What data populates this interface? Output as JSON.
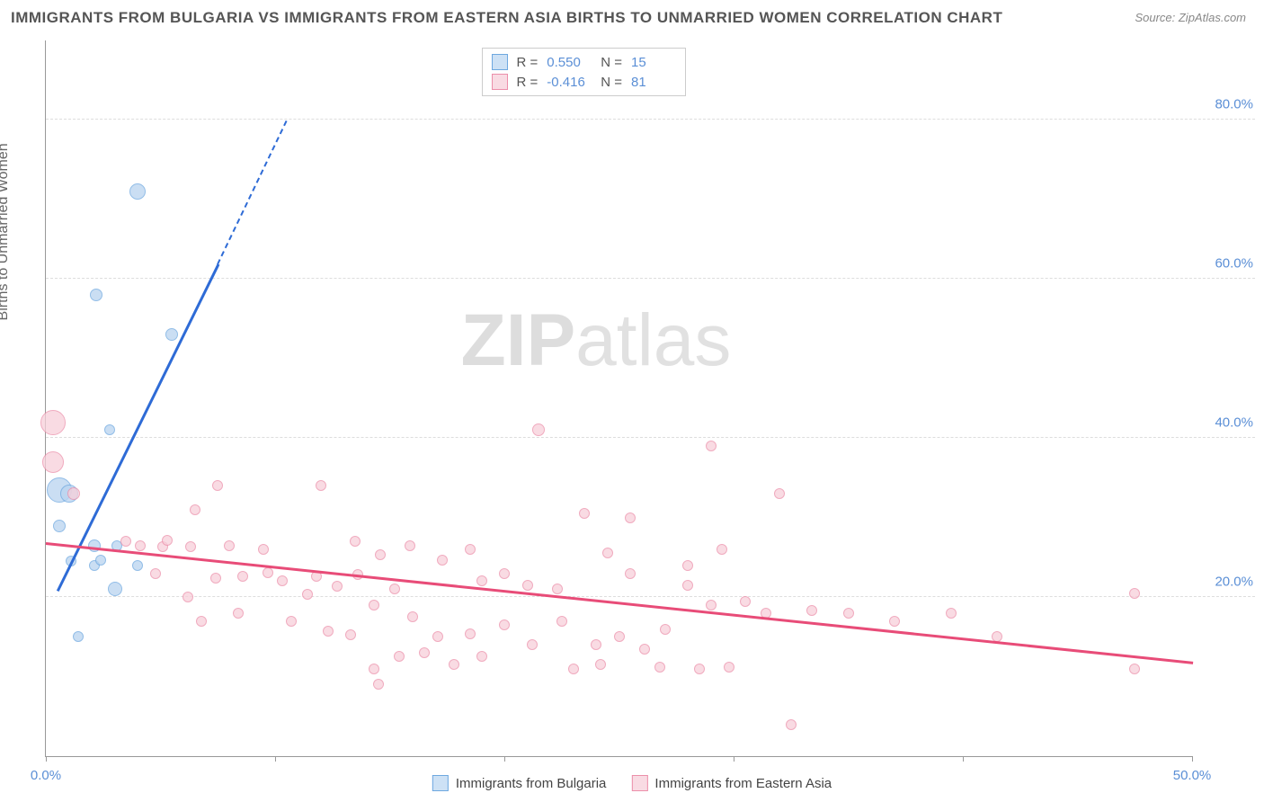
{
  "title": "IMMIGRANTS FROM BULGARIA VS IMMIGRANTS FROM EASTERN ASIA BIRTHS TO UNMARRIED WOMEN CORRELATION CHART",
  "source": "Source: ZipAtlas.com",
  "y_axis_label": "Births to Unmarried Women",
  "watermark_part1": "ZIP",
  "watermark_part2": "atlas",
  "chart": {
    "type": "scatter",
    "xlim": [
      0,
      50
    ],
    "ylim": [
      0,
      90
    ],
    "x_ticks": [
      0,
      10,
      20,
      30,
      40,
      50
    ],
    "x_tick_labels": {
      "0": "0.0%",
      "50": "50.0%"
    },
    "y_ticks": [
      20,
      40,
      60,
      80
    ],
    "y_tick_labels": {
      "20": "20.0%",
      "40": "40.0%",
      "60": "60.0%",
      "80": "80.0%"
    },
    "grid_color": "#dddddd",
    "background_color": "#ffffff"
  },
  "series": [
    {
      "name": "Immigrants from Bulgaria",
      "color_fill": "#b9d4f0",
      "color_stroke": "#6ea8e0",
      "swatch_fill": "#cde1f5",
      "swatch_border": "#6ea8e0",
      "trend_color": "#2e6bd6",
      "r_label": "R =",
      "r_value": "0.550",
      "n_label": "N =",
      "n_value": "15",
      "trend": {
        "x1": 0.5,
        "y1": 21,
        "x2": 7.5,
        "y2": 62,
        "dashed_x2": 10.5,
        "dashed_y2": 80
      },
      "points": [
        {
          "x": 0.6,
          "y": 33.5,
          "r": 14
        },
        {
          "x": 1.0,
          "y": 33,
          "r": 10
        },
        {
          "x": 4.0,
          "y": 71,
          "r": 9
        },
        {
          "x": 2.2,
          "y": 58,
          "r": 7
        },
        {
          "x": 5.5,
          "y": 53,
          "r": 7
        },
        {
          "x": 2.8,
          "y": 41,
          "r": 6
        },
        {
          "x": 0.6,
          "y": 29,
          "r": 7
        },
        {
          "x": 2.1,
          "y": 26.5,
          "r": 7
        },
        {
          "x": 3.1,
          "y": 26.5,
          "r": 6
        },
        {
          "x": 1.1,
          "y": 24.5,
          "r": 6
        },
        {
          "x": 2.1,
          "y": 24,
          "r": 6
        },
        {
          "x": 4.0,
          "y": 24,
          "r": 6
        },
        {
          "x": 3.0,
          "y": 21,
          "r": 8
        },
        {
          "x": 1.4,
          "y": 15,
          "r": 6
        },
        {
          "x": 2.4,
          "y": 24.7,
          "r": 6
        }
      ]
    },
    {
      "name": "Immigrants from Eastern Asia",
      "color_fill": "#f7d0da",
      "color_stroke": "#ec8faa",
      "swatch_fill": "#f9dbe3",
      "swatch_border": "#ec8faa",
      "trend_color": "#e84c78",
      "r_label": "R =",
      "r_value": "-0.416",
      "n_label": "N =",
      "n_value": "81",
      "trend": {
        "x1": 0,
        "y1": 27,
        "x2": 50,
        "y2": 12
      },
      "points": [
        {
          "x": 0.3,
          "y": 42,
          "r": 14
        },
        {
          "x": 0.3,
          "y": 37,
          "r": 12
        },
        {
          "x": 1.2,
          "y": 33,
          "r": 7
        },
        {
          "x": 21.5,
          "y": 41,
          "r": 7
        },
        {
          "x": 29,
          "y": 39,
          "r": 6
        },
        {
          "x": 7.5,
          "y": 34,
          "r": 6
        },
        {
          "x": 12,
          "y": 34,
          "r": 6
        },
        {
          "x": 32,
          "y": 33,
          "r": 6
        },
        {
          "x": 6.5,
          "y": 31,
          "r": 6
        },
        {
          "x": 23.5,
          "y": 30.5,
          "r": 6
        },
        {
          "x": 25.5,
          "y": 30,
          "r": 6
        },
        {
          "x": 3.5,
          "y": 27,
          "r": 6
        },
        {
          "x": 4.1,
          "y": 26.5,
          "r": 6
        },
        {
          "x": 5.1,
          "y": 26.3,
          "r": 6
        },
        {
          "x": 5.3,
          "y": 27.1,
          "r": 6
        },
        {
          "x": 6.3,
          "y": 26.3,
          "r": 6
        },
        {
          "x": 8.0,
          "y": 26.5,
          "r": 6
        },
        {
          "x": 9.5,
          "y": 26,
          "r": 6
        },
        {
          "x": 13.5,
          "y": 27,
          "r": 6
        },
        {
          "x": 14.6,
          "y": 25.3,
          "r": 6
        },
        {
          "x": 15.9,
          "y": 26.5,
          "r": 6
        },
        {
          "x": 17.3,
          "y": 24.7,
          "r": 6
        },
        {
          "x": 18.5,
          "y": 26,
          "r": 6
        },
        {
          "x": 24.5,
          "y": 25.5,
          "r": 6
        },
        {
          "x": 25.5,
          "y": 23,
          "r": 6
        },
        {
          "x": 28,
          "y": 24,
          "r": 6
        },
        {
          "x": 29.5,
          "y": 26,
          "r": 6
        },
        {
          "x": 4.8,
          "y": 23,
          "r": 6
        },
        {
          "x": 7.4,
          "y": 22.4,
          "r": 6
        },
        {
          "x": 8.6,
          "y": 22.6,
          "r": 6
        },
        {
          "x": 9.7,
          "y": 23.1,
          "r": 6
        },
        {
          "x": 10.3,
          "y": 22.1,
          "r": 6
        },
        {
          "x": 11.8,
          "y": 22.6,
          "r": 6
        },
        {
          "x": 12.7,
          "y": 21.4,
          "r": 6
        },
        {
          "x": 13.6,
          "y": 22.8,
          "r": 6
        },
        {
          "x": 19,
          "y": 22,
          "r": 6
        },
        {
          "x": 20,
          "y": 23,
          "r": 6
        },
        {
          "x": 21,
          "y": 21.5,
          "r": 6
        },
        {
          "x": 22.3,
          "y": 21,
          "r": 6
        },
        {
          "x": 6.2,
          "y": 20,
          "r": 6
        },
        {
          "x": 11.4,
          "y": 20.3,
          "r": 6
        },
        {
          "x": 14.3,
          "y": 19,
          "r": 6
        },
        {
          "x": 29,
          "y": 19,
          "r": 6
        },
        {
          "x": 30.5,
          "y": 19.5,
          "r": 6
        },
        {
          "x": 31.4,
          "y": 18,
          "r": 6
        },
        {
          "x": 33.4,
          "y": 18.3,
          "r": 6
        },
        {
          "x": 35,
          "y": 18,
          "r": 6
        },
        {
          "x": 37,
          "y": 17,
          "r": 6
        },
        {
          "x": 39.5,
          "y": 18,
          "r": 6
        },
        {
          "x": 41.5,
          "y": 15,
          "r": 6
        },
        {
          "x": 47.5,
          "y": 20.5,
          "r": 6
        },
        {
          "x": 6.8,
          "y": 17,
          "r": 6
        },
        {
          "x": 8.4,
          "y": 18,
          "r": 6
        },
        {
          "x": 10.7,
          "y": 17,
          "r": 6
        },
        {
          "x": 12.3,
          "y": 15.7,
          "r": 6
        },
        {
          "x": 13.3,
          "y": 15.3,
          "r": 6
        },
        {
          "x": 16,
          "y": 17.5,
          "r": 6
        },
        {
          "x": 17.1,
          "y": 15,
          "r": 6
        },
        {
          "x": 18.5,
          "y": 15.4,
          "r": 6
        },
        {
          "x": 20,
          "y": 16.5,
          "r": 6
        },
        {
          "x": 21.2,
          "y": 14,
          "r": 6
        },
        {
          "x": 22.5,
          "y": 17,
          "r": 6
        },
        {
          "x": 24,
          "y": 14,
          "r": 6
        },
        {
          "x": 25,
          "y": 15,
          "r": 6
        },
        {
          "x": 26.1,
          "y": 13.5,
          "r": 6
        },
        {
          "x": 27,
          "y": 16,
          "r": 6
        },
        {
          "x": 47.5,
          "y": 11,
          "r": 6
        },
        {
          "x": 14.3,
          "y": 11,
          "r": 6
        },
        {
          "x": 15.4,
          "y": 12.5,
          "r": 6
        },
        {
          "x": 16.5,
          "y": 13,
          "r": 6
        },
        {
          "x": 17.8,
          "y": 11.5,
          "r": 6
        },
        {
          "x": 19,
          "y": 12.5,
          "r": 6
        },
        {
          "x": 23,
          "y": 11,
          "r": 6
        },
        {
          "x": 24.2,
          "y": 11.5,
          "r": 6
        },
        {
          "x": 26.8,
          "y": 11.2,
          "r": 6
        },
        {
          "x": 28.5,
          "y": 11,
          "r": 6
        },
        {
          "x": 29.8,
          "y": 11.2,
          "r": 6
        },
        {
          "x": 14.5,
          "y": 9,
          "r": 6
        },
        {
          "x": 32.5,
          "y": 4,
          "r": 6
        },
        {
          "x": 15.2,
          "y": 21,
          "r": 6
        },
        {
          "x": 28,
          "y": 21.5,
          "r": 6
        }
      ]
    }
  ]
}
